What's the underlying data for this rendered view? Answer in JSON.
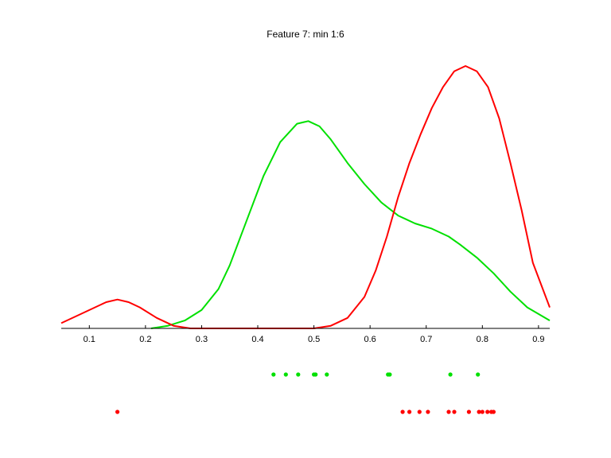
{
  "chart_data": {
    "type": "line",
    "title": "Feature 7: min 1:6",
    "xlabel": "",
    "ylabel": "",
    "xlim": [
      0.05,
      0.92
    ],
    "ylim": [
      0,
      1
    ],
    "xticks": [
      0.1,
      0.2,
      0.3,
      0.4,
      0.5,
      0.6,
      0.7,
      0.8,
      0.9
    ],
    "xtick_labels": [
      "0.1",
      "0.2",
      "0.3",
      "0.4",
      "0.5",
      "0.6",
      "0.7",
      "0.8",
      "0.9"
    ],
    "grid": false,
    "series": [
      {
        "color": "#00e000",
        "x": [
          0.21,
          0.24,
          0.27,
          0.3,
          0.33,
          0.35,
          0.38,
          0.41,
          0.44,
          0.47,
          0.49,
          0.51,
          0.53,
          0.56,
          0.59,
          0.62,
          0.65,
          0.68,
          0.71,
          0.74,
          0.76,
          0.79,
          0.82,
          0.85,
          0.88,
          0.92
        ],
        "y": [
          0.0,
          0.01,
          0.03,
          0.07,
          0.15,
          0.24,
          0.41,
          0.58,
          0.71,
          0.78,
          0.79,
          0.77,
          0.72,
          0.63,
          0.55,
          0.48,
          0.43,
          0.4,
          0.38,
          0.35,
          0.32,
          0.27,
          0.21,
          0.14,
          0.08,
          0.03
        ]
      },
      {
        "color": "#ff0000",
        "x": [
          0.05,
          0.08,
          0.11,
          0.13,
          0.15,
          0.17,
          0.19,
          0.22,
          0.25,
          0.28,
          0.3,
          0.35,
          0.4,
          0.45,
          0.5,
          0.53,
          0.56,
          0.59,
          0.61,
          0.63,
          0.65,
          0.67,
          0.69,
          0.71,
          0.73,
          0.75,
          0.77,
          0.79,
          0.81,
          0.83,
          0.85,
          0.87,
          0.89,
          0.92
        ],
        "y": [
          0.02,
          0.05,
          0.08,
          0.1,
          0.11,
          0.1,
          0.08,
          0.04,
          0.01,
          0.0,
          0.0,
          0.0,
          0.0,
          0.0,
          0.0,
          0.01,
          0.04,
          0.12,
          0.22,
          0.35,
          0.5,
          0.63,
          0.74,
          0.84,
          0.92,
          0.98,
          1.0,
          0.98,
          0.92,
          0.8,
          0.63,
          0.45,
          0.25,
          0.08
        ]
      }
    ],
    "points": [
      {
        "color": "#00e000",
        "x": [
          0.428,
          0.45,
          0.472,
          0.5,
          0.503,
          0.523,
          0.632,
          0.635,
          0.743,
          0.792
        ]
      },
      {
        "color": "#ff0000",
        "x": [
          0.15,
          0.658,
          0.67,
          0.688,
          0.703,
          0.74,
          0.75,
          0.776,
          0.794,
          0.8,
          0.809,
          0.816,
          0.82
        ]
      }
    ]
  }
}
